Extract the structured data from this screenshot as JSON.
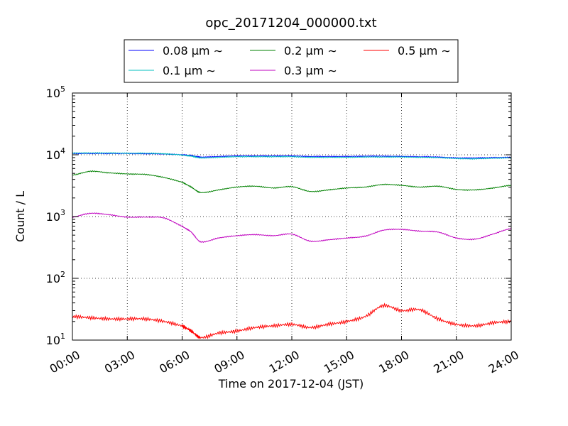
{
  "chart_data": {
    "type": "line",
    "title": "opc_20171204_000000.txt",
    "xlabel": "Time on 2017-12-04 (JST)",
    "ylabel": "Count / L",
    "yscale": "log",
    "xlim": [
      "00:00",
      "24:00"
    ],
    "ylim": [
      10,
      100000
    ],
    "x_ticks": [
      "00:00",
      "03:00",
      "06:00",
      "09:00",
      "12:00",
      "15:00",
      "18:00",
      "21:00",
      "24:00"
    ],
    "y_ticks": [
      {
        "base": "10",
        "exp": "1"
      },
      {
        "base": "10",
        "exp": "2"
      },
      {
        "base": "10",
        "exp": "3"
      },
      {
        "base": "10",
        "exp": "4"
      },
      {
        "base": "10",
        "exp": "5"
      }
    ],
    "grid": true,
    "legend": {
      "position": "top-center",
      "columns": 3
    },
    "x": [
      "00:00",
      "01:00",
      "02:00",
      "03:00",
      "04:00",
      "05:00",
      "06:00",
      "06:30",
      "07:00",
      "08:00",
      "09:00",
      "10:00",
      "11:00",
      "12:00",
      "13:00",
      "14:00",
      "15:00",
      "16:00",
      "17:00",
      "18:00",
      "19:00",
      "20:00",
      "21:00",
      "22:00",
      "23:00",
      "24:00"
    ],
    "series": [
      {
        "name": "0.08 μm ∼",
        "color": "#0000ff",
        "values": [
          10500,
          10500,
          10500,
          10500,
          10400,
          10300,
          10000,
          9700,
          9200,
          9400,
          9600,
          9600,
          9600,
          9600,
          9400,
          9400,
          9400,
          9500,
          9500,
          9400,
          9300,
          9200,
          8900,
          8900,
          9000,
          9100
        ]
      },
      {
        "name": "0.1 μm ∼",
        "color": "#00bfbf",
        "values": [
          10700,
          10700,
          10700,
          10600,
          10600,
          10400,
          9900,
          9500,
          8900,
          9100,
          9300,
          9300,
          9300,
          9300,
          9100,
          9100,
          9100,
          9200,
          9200,
          9200,
          9100,
          9000,
          8700,
          8600,
          8800,
          8900
        ]
      },
      {
        "name": "0.2 μm ∼",
        "color": "#008000",
        "values": [
          4700,
          5400,
          5100,
          4900,
          4800,
          4300,
          3600,
          3000,
          2450,
          2700,
          3000,
          3100,
          2900,
          3050,
          2550,
          2700,
          2900,
          3000,
          3300,
          3200,
          3000,
          3100,
          2750,
          2700,
          2900,
          3200
        ]
      },
      {
        "name": "0.3 μm ∼",
        "color": "#bf00bf",
        "values": [
          980,
          1130,
          1070,
          980,
          980,
          950,
          700,
          560,
          390,
          450,
          490,
          510,
          490,
          520,
          400,
          420,
          450,
          480,
          600,
          620,
          580,
          560,
          450,
          430,
          520,
          640
        ]
      },
      {
        "name": "0.5 μm ∼",
        "color": "#ff0000",
        "values": [
          24,
          23,
          22,
          22,
          22,
          20,
          17,
          14,
          11,
          13,
          14,
          16,
          17,
          18,
          16,
          18,
          20,
          24,
          36,
          30,
          31,
          22,
          18,
          17,
          19,
          20
        ]
      }
    ]
  }
}
